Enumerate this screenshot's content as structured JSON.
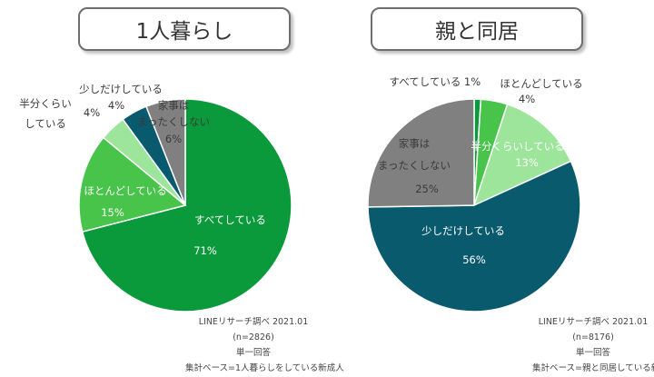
{
  "colors": {
    "all": "#0a9a3c",
    "mostly": "#48c44a",
    "half": "#9ce59a",
    "little": "#0a5a6e",
    "none": "#808080",
    "label_dark": "#3a3a3a",
    "label_light": "#ffffff"
  },
  "chart_data": [
    {
      "type": "pie",
      "title": "1人暮らし",
      "slices": [
        {
          "key": "all",
          "label": "すべてしている",
          "value": 71,
          "display": "71%"
        },
        {
          "key": "mostly",
          "label": "ほとんどしている",
          "value": 15,
          "display": "15%"
        },
        {
          "key": "half",
          "label": "半分くらい\nしている",
          "value": 4,
          "display": "4%"
        },
        {
          "key": "little",
          "label": "少しだけしている",
          "value": 4,
          "display": "4%"
        },
        {
          "key": "none",
          "label": "家事は\nまったくしない",
          "value": 6,
          "display": "6%"
        }
      ],
      "source": [
        "LINEリサーチ調べ 2021.01",
        "(n=2826)",
        "単一回答",
        "集計ベース=1人暮らしをしている新成人"
      ]
    },
    {
      "type": "pie",
      "title": "親と同居",
      "slices": [
        {
          "key": "all",
          "label": "すべてしている",
          "value": 1,
          "display": "1%"
        },
        {
          "key": "mostly",
          "label": "ほとんどしている",
          "value": 4,
          "display": "4%"
        },
        {
          "key": "half",
          "label": "半分くらいしている",
          "value": 13,
          "display": "13%"
        },
        {
          "key": "little",
          "label": "少しだけしている",
          "value": 56,
          "display": "56%"
        },
        {
          "key": "none",
          "label": "家事は\nまったくしない",
          "value": 25,
          "display": "25%"
        }
      ],
      "source": [
        "LINEリサーチ調べ 2021.01",
        "(n=8176)",
        "単一回答",
        "集計ベース=親と同居している新成人"
      ]
    }
  ]
}
